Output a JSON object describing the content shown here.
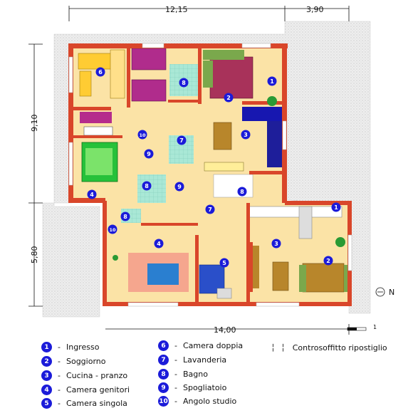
{
  "dimensions": {
    "top_left": "12,15",
    "top_right": "3,90",
    "left_upper": "9,10",
    "left_lower": "5,80",
    "bottom": "14,00",
    "scale": "1",
    "north": "N"
  },
  "room_numbers": [
    "1",
    "2",
    "3",
    "4",
    "5",
    "6",
    "7",
    "8",
    "9",
    "10"
  ],
  "legend": [
    {
      "num": "1",
      "label": "Ingresso"
    },
    {
      "num": "2",
      "label": "Soggiorno"
    },
    {
      "num": "3",
      "label": "Cucina - pranzo"
    },
    {
      "num": "4",
      "label": "Camera genitori"
    },
    {
      "num": "5",
      "label": "Camera singola"
    },
    {
      "num": "6",
      "label": "Camera doppia"
    },
    {
      "num": "7",
      "label": "Lavanderia"
    },
    {
      "num": "8",
      "label": "Bagno"
    },
    {
      "num": "9",
      "label": "Spogliatoio"
    },
    {
      "num": "10",
      "label": "Angolo studio"
    }
  ],
  "legend_note": "Controsoffitto ripostiglio",
  "colors": {
    "wall": "#d9462a",
    "floor": "#fbe3a6",
    "bath": "#a8e6d8",
    "terrace": "#e6e6e6",
    "badge": "#1b1bd9"
  }
}
